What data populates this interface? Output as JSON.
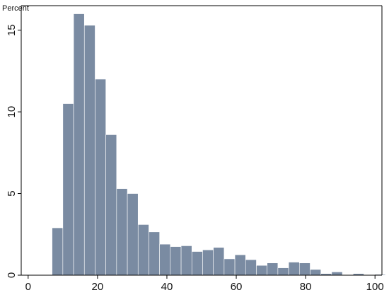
{
  "chart_data": {
    "type": "bar",
    "subtype": "histogram",
    "ylabel": "Percent",
    "xlabel": "",
    "xlim": [
      -2,
      102
    ],
    "ylim": [
      0,
      16.5
    ],
    "bin_width": 3.1,
    "bins": [
      {
        "start": 6.9,
        "value": 2.9
      },
      {
        "start": 10.0,
        "value": 10.5
      },
      {
        "start": 13.1,
        "value": 16.0
      },
      {
        "start": 16.2,
        "value": 15.3
      },
      {
        "start": 19.3,
        "value": 12.0
      },
      {
        "start": 22.4,
        "value": 8.6
      },
      {
        "start": 25.5,
        "value": 5.3
      },
      {
        "start": 28.6,
        "value": 5.0
      },
      {
        "start": 31.7,
        "value": 3.1
      },
      {
        "start": 34.8,
        "value": 2.65
      },
      {
        "start": 37.9,
        "value": 1.9
      },
      {
        "start": 41.0,
        "value": 1.75
      },
      {
        "start": 44.1,
        "value": 1.8
      },
      {
        "start": 47.2,
        "value": 1.45
      },
      {
        "start": 50.3,
        "value": 1.55
      },
      {
        "start": 53.4,
        "value": 1.7
      },
      {
        "start": 56.5,
        "value": 1.0
      },
      {
        "start": 59.6,
        "value": 1.25
      },
      {
        "start": 62.7,
        "value": 0.95
      },
      {
        "start": 65.8,
        "value": 0.6
      },
      {
        "start": 68.9,
        "value": 0.75
      },
      {
        "start": 72.0,
        "value": 0.45
      },
      {
        "start": 75.1,
        "value": 0.8
      },
      {
        "start": 78.2,
        "value": 0.75
      },
      {
        "start": 81.3,
        "value": 0.35
      },
      {
        "start": 84.4,
        "value": 0.1
      },
      {
        "start": 87.5,
        "value": 0.2
      },
      {
        "start": 90.6,
        "value": 0.0
      },
      {
        "start": 93.7,
        "value": 0.1
      },
      {
        "start": 96.8,
        "value": 0.02
      },
      {
        "start": 99.9,
        "value": 0.05
      }
    ],
    "x_ticks": [
      0,
      20,
      40,
      60,
      80,
      100
    ],
    "y_ticks": [
      0,
      5,
      10,
      15
    ],
    "grid": false,
    "legend": "none",
    "colors": {
      "bar_fill": "#7a8ba2",
      "bar_stroke": "#ffffff",
      "axis": "#000000"
    }
  }
}
